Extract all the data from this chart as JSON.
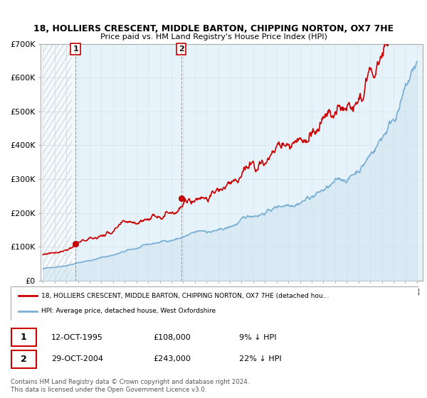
{
  "title1": "18, HOLLIERS CRESCENT, MIDDLE BARTON, CHIPPING NORTON, OX7 7HE",
  "title2": "Price paid vs. HM Land Registry's House Price Index (HPI)",
  "ylim": [
    0,
    700000
  ],
  "yticks": [
    0,
    100000,
    200000,
    300000,
    400000,
    500000,
    600000,
    700000
  ],
  "ytick_labels": [
    "£0",
    "£100K",
    "£200K",
    "£300K",
    "£400K",
    "£500K",
    "£600K",
    "£700K"
  ],
  "purchase1": {
    "date_idx": 1995.79,
    "price": 108000,
    "label": "1"
  },
  "purchase2": {
    "date_idx": 2004.83,
    "price": 243000,
    "label": "2"
  },
  "legend_line1": "18, HOLLIERS CRESCENT, MIDDLE BARTON, CHIPPING NORTON, OX7 7HE (detached hou…",
  "legend_line2": "HPI: Average price, detached house, West Oxfordshire",
  "table_row1": [
    "1",
    "12-OCT-1995",
    "£108,000",
    "9% ↓ HPI"
  ],
  "table_row2": [
    "2",
    "29-OCT-2004",
    "£243,000",
    "22% ↓ HPI"
  ],
  "footer": "Contains HM Land Registry data © Crown copyright and database right 2024.\nThis data is licensed under the Open Government Licence v3.0.",
  "line_color_red": "#cc0000",
  "line_color_blue": "#7aafd4",
  "dot_color": "#cc0000",
  "bg_color": "#ffffff"
}
